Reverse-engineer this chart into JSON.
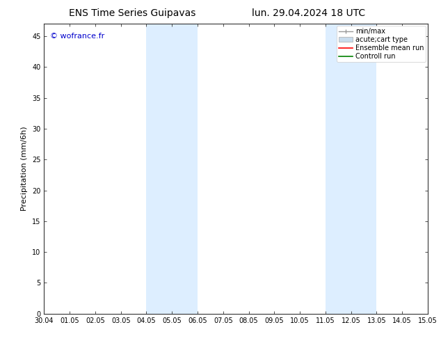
{
  "title_left": "ENS Time Series Guipavas",
  "title_right": "lun. 29.04.2024 18 UTC",
  "ylabel": "Precipitation (mm/6h)",
  "watermark": "© wofrance.fr",
  "watermark_color": "#0000cc",
  "ylim": [
    0,
    47
  ],
  "yticks": [
    0,
    5,
    10,
    15,
    20,
    25,
    30,
    35,
    40,
    45
  ],
  "xtick_labels": [
    "30.04",
    "01.05",
    "02.05",
    "03.05",
    "04.05",
    "05.05",
    "06.05",
    "07.05",
    "08.05",
    "09.05",
    "10.05",
    "11.05",
    "12.05",
    "13.05",
    "14.05",
    "15.05"
  ],
  "xtick_positions": [
    0,
    1,
    2,
    3,
    4,
    5,
    6,
    7,
    8,
    9,
    10,
    11,
    12,
    13,
    14,
    15
  ],
  "shaded_regions": [
    {
      "x_start": 4.0,
      "x_end": 6.0,
      "color": "#ddeeff"
    },
    {
      "x_start": 11.0,
      "x_end": 13.0,
      "color": "#ddeeff"
    }
  ],
  "legend_labels": [
    "min/max",
    "acute;cart type",
    "Ensemble mean run",
    "Controll run"
  ],
  "legend_colors": [
    "#aaaaaa",
    "#c8dced",
    "#ff0000",
    "#008000"
  ],
  "background_color": "#ffffff",
  "title_fontsize": 10,
  "tick_fontsize": 7,
  "ylabel_fontsize": 8,
  "legend_fontsize": 7
}
